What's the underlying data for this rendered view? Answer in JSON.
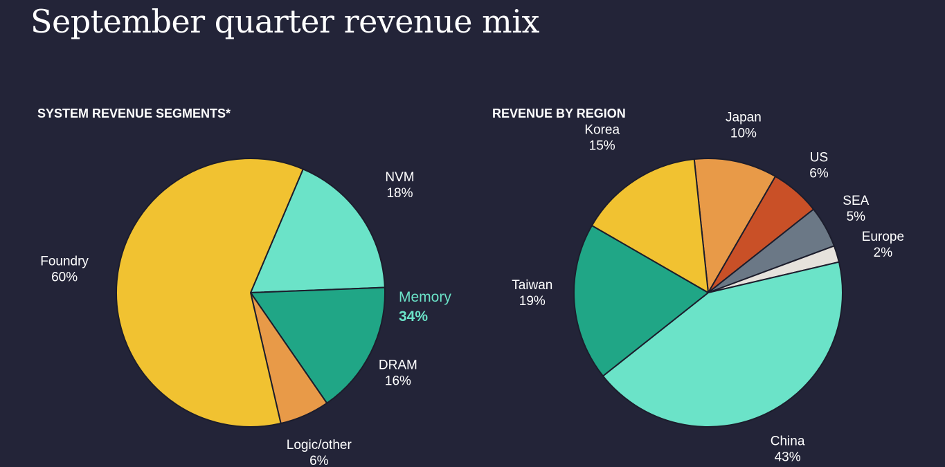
{
  "title": "September quarter revenue mix",
  "colors": {
    "background": "#232438",
    "text": "#ffffff",
    "memory_accent": "#6be3c8",
    "slice_stroke": "#1c1d2c"
  },
  "chart_data": [
    {
      "type": "pie",
      "title": "SYSTEM REVENUE SEGMENTS*",
      "start_angle_deg": 23,
      "slices": [
        {
          "label": "NVM",
          "value": 18,
          "display": "18%",
          "color": "#6be3c8"
        },
        {
          "label": "DRAM",
          "value": 16,
          "display": "16%",
          "color": "#20a686"
        },
        {
          "label": "Logic/other",
          "value": 6,
          "display": "6%",
          "color": "#e89a48"
        },
        {
          "label": "Foundry",
          "value": 60,
          "display": "60%",
          "color": "#f1c231"
        }
      ],
      "group_annotation": {
        "label": "Memory",
        "value": "34%",
        "members": [
          "NVM",
          "DRAM"
        ]
      }
    },
    {
      "type": "pie",
      "title": "REVENUE BY REGION",
      "start_angle_deg": -6,
      "slices": [
        {
          "label": "Japan",
          "value": 10,
          "display": "10%",
          "color": "#e89a48"
        },
        {
          "label": "US",
          "value": 6,
          "display": "6%",
          "color": "#c95027"
        },
        {
          "label": "SEA",
          "value": 5,
          "display": "5%",
          "color": "#6b7886"
        },
        {
          "label": "Europe",
          "value": 2,
          "display": "2%",
          "color": "#e6e2dc"
        },
        {
          "label": "China",
          "value": 43,
          "display": "43%",
          "color": "#6be3c8"
        },
        {
          "label": "Taiwan",
          "value": 19,
          "display": "19%",
          "color": "#20a686"
        },
        {
          "label": "Korea",
          "value": 15,
          "display": "15%",
          "color": "#f1c231"
        }
      ]
    }
  ]
}
